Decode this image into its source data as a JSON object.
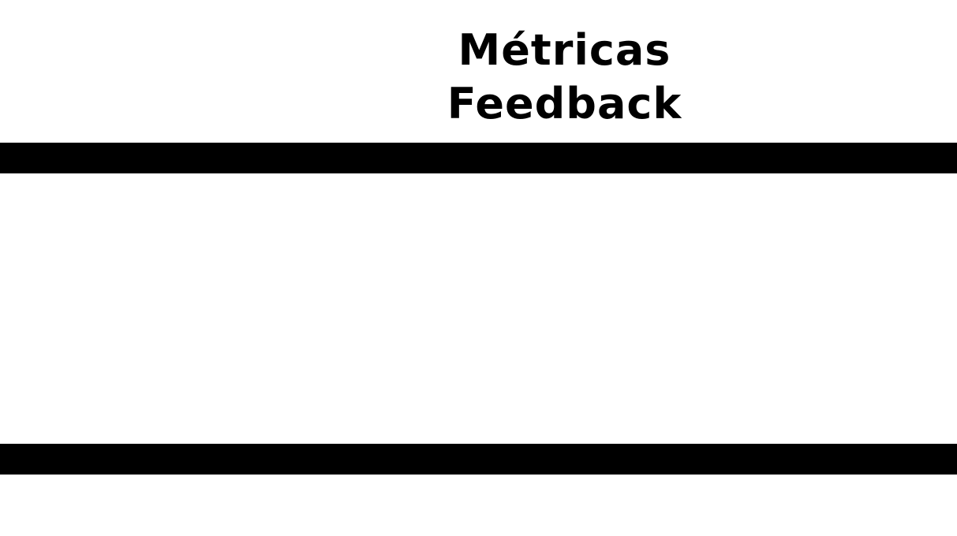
{
  "header": {
    "title_line_1": "Métricas",
    "title_line_2": "Feedback"
  },
  "colors": {
    "background": "#ffffff",
    "band": "#000000",
    "text": "#000000"
  }
}
